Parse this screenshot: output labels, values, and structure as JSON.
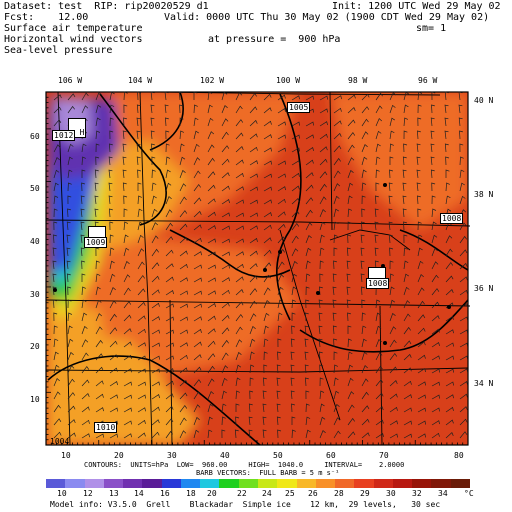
{
  "header": {
    "dataset": "Dataset: test  RIP: rip20020529 d1",
    "init": "Init: 1200 UTC Wed 29 May 02",
    "fcst": "Fcst:    12.00",
    "valid": "Valid: 0000 UTC Thu 30 May 02 (1900 CDT Wed 29 May 02)",
    "field1": "Surface air temperature",
    "sm": "sm= 1",
    "field2": "Horizontal wind vectors",
    "pressure": "at pressure =  900 hPa",
    "field3": "Sea-level pressure"
  },
  "map": {
    "lon_labels": [
      "106 W",
      "104 W",
      "102 W",
      "100 W",
      "98 W",
      "96 W"
    ],
    "lat_labels": [
      "40 N",
      "38 N",
      "36 N",
      "34 N"
    ],
    "x_ticks": [
      "10",
      "20",
      "30",
      "40",
      "50",
      "60",
      "70",
      "80"
    ],
    "y_ticks": [
      "60",
      "50",
      "40",
      "30",
      "20",
      "10"
    ],
    "pressure_labels": [
      {
        "h": "H",
        "value": "1012"
      },
      {
        "h": "H",
        "value": "1009"
      },
      {
        "h": "",
        "value": "1005"
      },
      {
        "h": "",
        "value": "1008"
      },
      {
        "h": "H",
        "value": "1008"
      },
      {
        "h": "",
        "value": "1010"
      },
      {
        "h": "",
        "value": "1004"
      }
    ],
    "colors": {
      "hot": "#d8401a",
      "warm": "#ee6c28",
      "mild": "#f4a028",
      "cool": "#e8d820",
      "green": "#2ec83c",
      "cyan": "#28c0d0",
      "blue": "#3050e0",
      "purple": "#6030b0",
      "lav": "#a888d8"
    }
  },
  "footer": {
    "contours": "CONTOURS:  UNITS=hPa  LOW=  960.00     HIGH=  1040.0     INTERVAL=    2.0000",
    "barbs": "BARB VECTORS:  FULL BARB = 5 m s⁻¹",
    "colorbar_labels": [
      "10",
      "12",
      "13",
      "14",
      "16",
      "18",
      "20",
      "22",
      "24",
      "25",
      "26",
      "28",
      "29",
      "30",
      "32",
      "34"
    ],
    "colorbar_unit": "°C",
    "colorbar_colors": [
      "#5a5ad8",
      "#8a8af0",
      "#b090e8",
      "#8a50c8",
      "#7030b0",
      "#5a1c98",
      "#2838d8",
      "#2088f0",
      "#20c8e0",
      "#20d020",
      "#70e020",
      "#c8e818",
      "#f0e818",
      "#f8b828",
      "#f89028",
      "#f06828",
      "#e84020",
      "#d02818",
      "#b81810",
      "#981408",
      "#801808",
      "#6a1c08"
    ],
    "model_info": "Model info: V3.5.0  Grell    Blackadar  Simple ice    12 km,  29 levels,   30 sec"
  }
}
